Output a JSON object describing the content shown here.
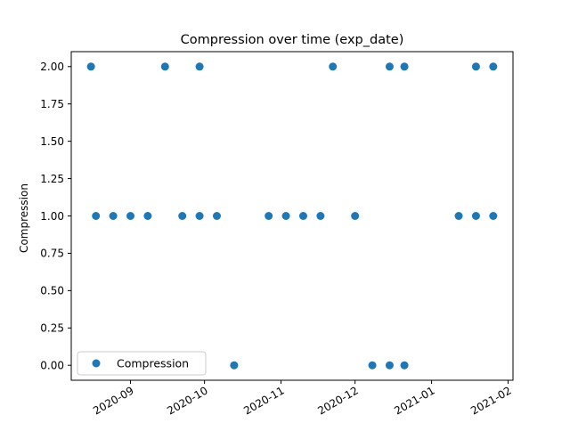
{
  "chart_data": {
    "type": "scatter",
    "title": "Compression  over time (exp_date)",
    "xlabel": "",
    "ylabel": "Compression",
    "x_type": "date",
    "xlim": [
      "2020-08-08",
      "2021-02-03"
    ],
    "ylim": [
      -0.1,
      2.1
    ],
    "x_ticks": [
      "2020-09-01",
      "2020-10-01",
      "2020-11-01",
      "2020-12-01",
      "2021-01-01",
      "2021-02-01"
    ],
    "x_tick_labels": [
      "2020-09",
      "2020-10",
      "2020-11",
      "2020-12",
      "2021-01",
      "2021-02"
    ],
    "y_ticks": [
      0.0,
      0.25,
      0.5,
      0.75,
      1.0,
      1.25,
      1.5,
      1.75,
      2.0
    ],
    "y_tick_labels": [
      "0.00",
      "0.25",
      "0.50",
      "0.75",
      "1.00",
      "1.25",
      "1.50",
      "1.75",
      "2.00"
    ],
    "grid": false,
    "legend": {
      "placement": "lower-left",
      "entries": [
        "Compression"
      ]
    },
    "colors": {
      "series": "#1f77b4",
      "axes": "#000000",
      "legend_border": "#cccccc"
    },
    "series": [
      {
        "name": "Compression",
        "marker": "circle",
        "points": [
          {
            "x": "2020-08-16",
            "y": 2
          },
          {
            "x": "2020-08-18",
            "y": 1
          },
          {
            "x": "2020-08-25",
            "y": 1
          },
          {
            "x": "2020-09-01",
            "y": 1
          },
          {
            "x": "2020-09-08",
            "y": 1
          },
          {
            "x": "2020-09-15",
            "y": 2
          },
          {
            "x": "2020-09-22",
            "y": 1
          },
          {
            "x": "2020-09-29",
            "y": 2
          },
          {
            "x": "2020-09-29",
            "y": 1
          },
          {
            "x": "2020-10-06",
            "y": 1
          },
          {
            "x": "2020-10-13",
            "y": 0
          },
          {
            "x": "2020-10-27",
            "y": 1
          },
          {
            "x": "2020-11-03",
            "y": 1
          },
          {
            "x": "2020-11-10",
            "y": 1
          },
          {
            "x": "2020-11-17",
            "y": 1
          },
          {
            "x": "2020-11-22",
            "y": 2
          },
          {
            "x": "2020-12-01",
            "y": 1
          },
          {
            "x": "2020-12-08",
            "y": 0
          },
          {
            "x": "2020-12-15",
            "y": 2
          },
          {
            "x": "2020-12-15",
            "y": 0
          },
          {
            "x": "2020-12-21",
            "y": 2
          },
          {
            "x": "2020-12-21",
            "y": 0
          },
          {
            "x": "2021-01-12",
            "y": 1
          },
          {
            "x": "2021-01-19",
            "y": 2
          },
          {
            "x": "2021-01-19",
            "y": 1
          },
          {
            "x": "2021-01-26",
            "y": 2
          },
          {
            "x": "2021-01-26",
            "y": 1
          }
        ]
      }
    ]
  }
}
